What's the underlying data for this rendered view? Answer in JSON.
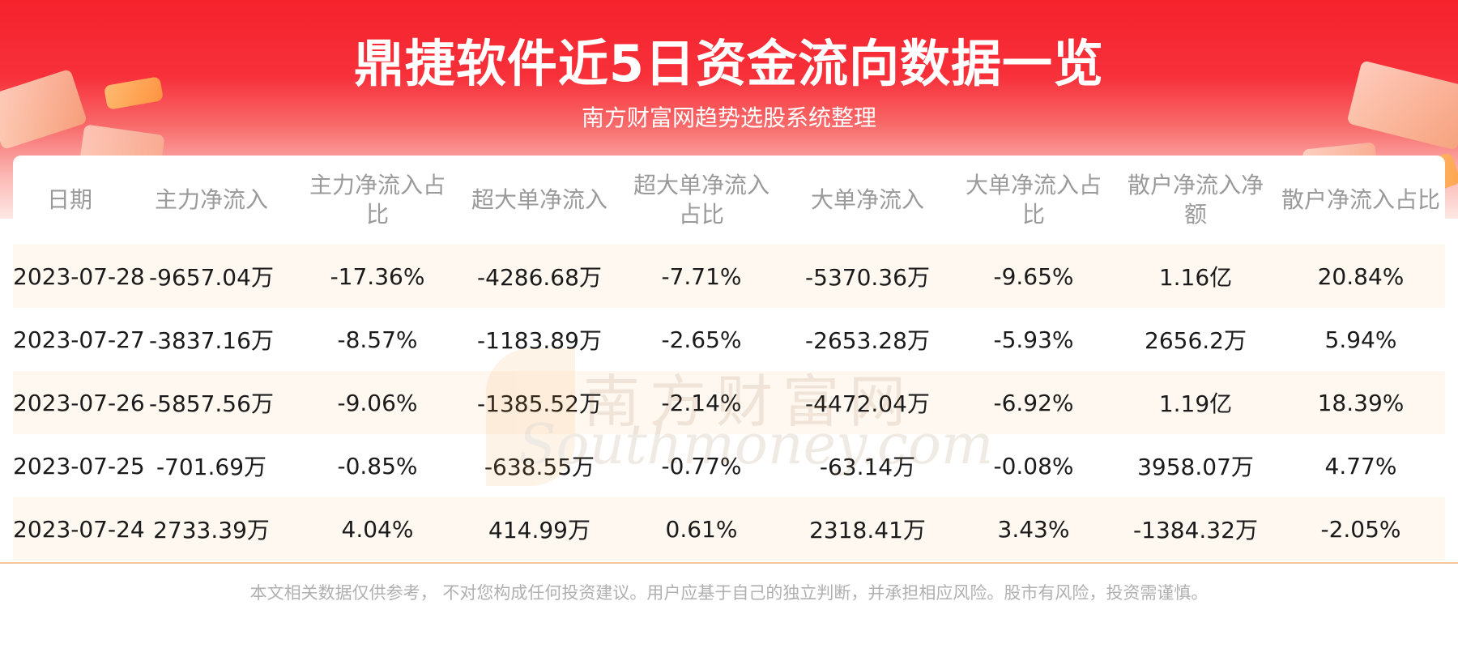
{
  "header": {
    "title": "鼎捷软件近5日资金流向数据一览",
    "subtitle": "南方财富网趋势选股系统整理"
  },
  "watermark": {
    "cn": "南方财富网",
    "en": "Southmoney.com"
  },
  "table": {
    "columns": [
      "日期",
      "主力净流入",
      "主力净流入占比",
      "超大单净流入",
      "超大单净流入占比",
      "大单净流入",
      "大单净流入占比",
      "散户净流入净额",
      "散户净流入占比"
    ],
    "rows": [
      [
        "2023-07-28",
        "-9657.04万",
        "-17.36%",
        "-4286.68万",
        "-7.71%",
        "-5370.36万",
        "-9.65%",
        "1.16亿",
        "20.84%"
      ],
      [
        "2023-07-27",
        "-3837.16万",
        "-8.57%",
        "-1183.89万",
        "-2.65%",
        "-2653.28万",
        "-5.93%",
        "2656.2万",
        "5.94%"
      ],
      [
        "2023-07-26",
        "-5857.56万",
        "-9.06%",
        "-1385.52万",
        "-2.14%",
        "-4472.04万",
        "-6.92%",
        "1.19亿",
        "18.39%"
      ],
      [
        "2023-07-25",
        "-701.69万",
        "-0.85%",
        "-638.55万",
        "-0.77%",
        "-63.14万",
        "-0.08%",
        "3958.07万",
        "4.77%"
      ],
      [
        "2023-07-24",
        "2733.39万",
        "4.04%",
        "414.99万",
        "0.61%",
        "2318.41万",
        "3.43%",
        "-1384.32万",
        "-2.05%"
      ]
    ]
  },
  "footer": {
    "disclaimer": "本文相关数据仅供参考， 不对您构成任何投资建议。用户应基于自己的独立判断，并承担相应风险。股市有风险，投资需谨慎。"
  },
  "colors": {
    "banner_red": "#f5222c",
    "title_text": "#ffffff",
    "header_text": "#9a9a9a",
    "body_text": "#1a1a1a",
    "stripe": "#fff8f1",
    "disclaimer_text": "#b0b0b0"
  }
}
